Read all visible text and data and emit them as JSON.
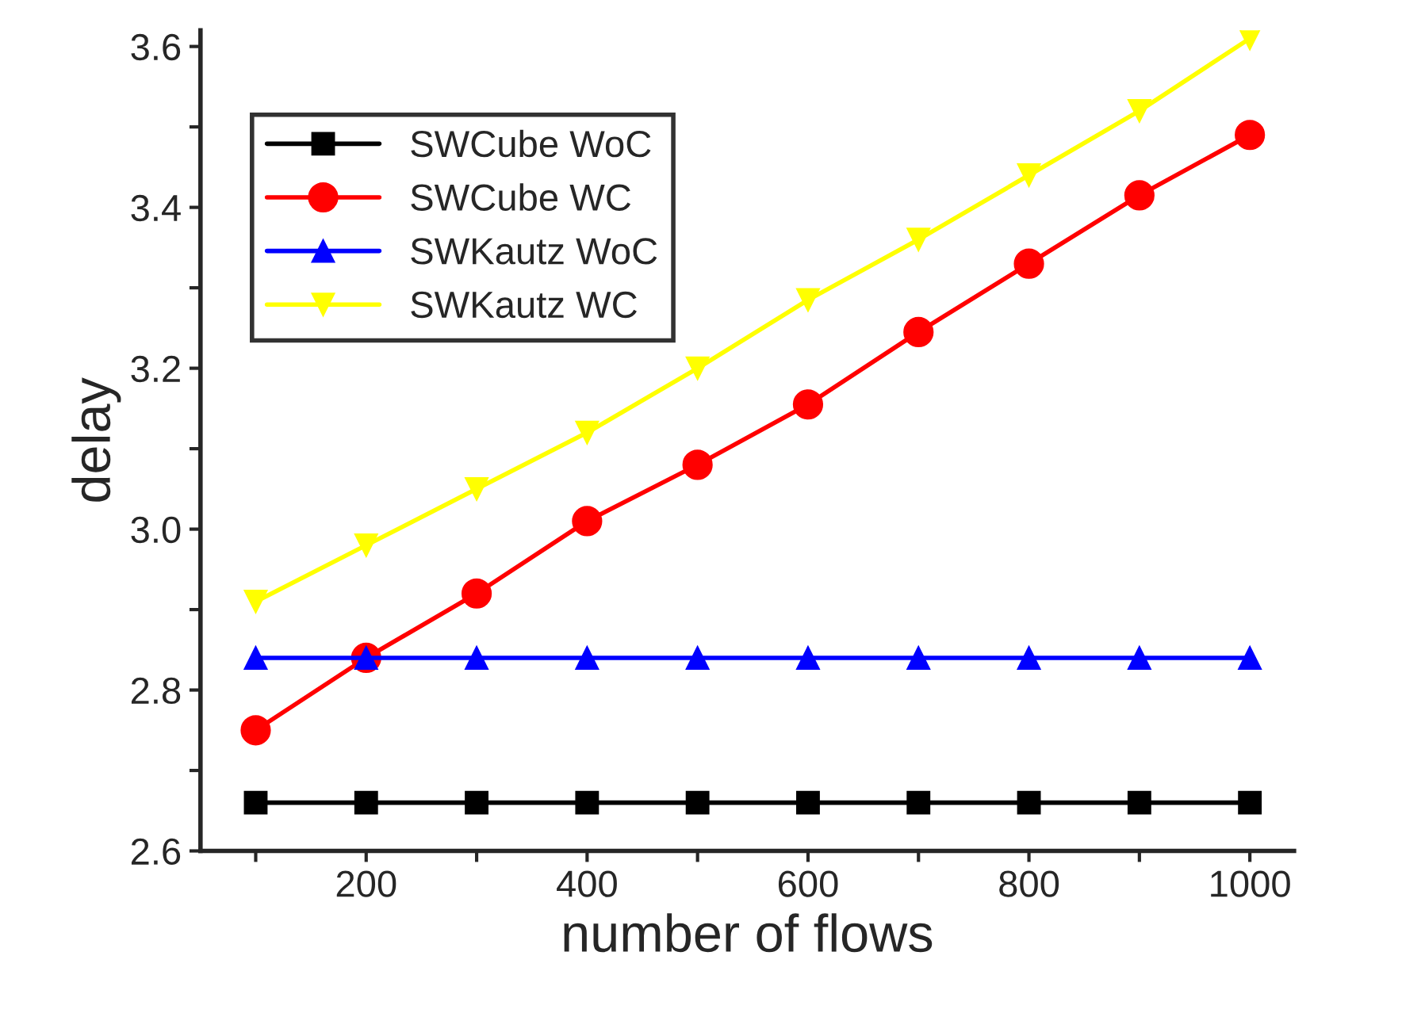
{
  "chart_data": {
    "type": "line",
    "xlabel": "number of flows",
    "ylabel": "delay",
    "x": [
      100,
      200,
      300,
      400,
      500,
      600,
      700,
      800,
      900,
      1000
    ],
    "series": [
      {
        "name": "SWCube WoC",
        "color": "#000000",
        "marker": "square",
        "values": [
          2.66,
          2.66,
          2.66,
          2.66,
          2.66,
          2.66,
          2.66,
          2.66,
          2.66,
          2.66
        ]
      },
      {
        "name": "SWCube WC",
        "color": "#ff0000",
        "marker": "circle",
        "values": [
          2.75,
          2.84,
          2.92,
          3.01,
          3.08,
          3.155,
          3.245,
          3.33,
          3.415,
          3.49
        ]
      },
      {
        "name": "SWKautz WoC",
        "color": "#0000ff",
        "marker": "triangle",
        "values": [
          2.84,
          2.84,
          2.84,
          2.84,
          2.84,
          2.84,
          2.84,
          2.84,
          2.84,
          2.84
        ]
      },
      {
        "name": "SWKautz WC",
        "color": "#ffff00",
        "marker": "triangle_down",
        "values": [
          2.91,
          2.98,
          3.05,
          3.12,
          3.2,
          3.285,
          3.36,
          3.44,
          3.52,
          3.61
        ]
      }
    ],
    "xlim": [
      50,
      1040
    ],
    "ylim": [
      2.6,
      3.62
    ],
    "xticks": [
      {
        "value": 100,
        "label": null
      },
      200,
      {
        "value": 300,
        "label": null
      },
      400,
      {
        "value": 500,
        "label": null
      },
      600,
      {
        "value": 700,
        "label": null
      },
      800,
      {
        "value": 900,
        "label": null
      },
      1000
    ],
    "yticks": [
      2.6,
      {
        "value": 2.7,
        "label": null
      },
      2.8,
      {
        "value": 2.9,
        "label": null
      },
      {
        "value": 3,
        "label": "3.0"
      },
      {
        "value": 3.1,
        "label": null
      },
      3.2,
      {
        "value": 3.3,
        "label": null
      },
      3.4,
      {
        "value": 3.5,
        "label": null
      },
      3.6
    ],
    "grid": false,
    "legend": "top left",
    "line_style": "solid"
  }
}
